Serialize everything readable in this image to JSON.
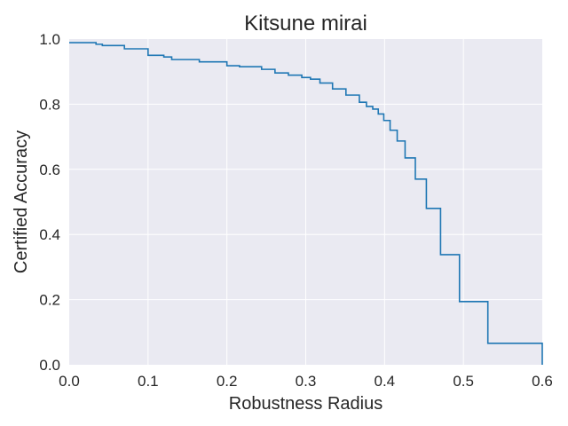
{
  "chart_data": {
    "type": "line",
    "style": "step",
    "title": "Kitsune mirai",
    "xlabel": "Robustness Radius",
    "ylabel": "Certified Accuracy",
    "xlim": [
      0.0,
      0.6
    ],
    "ylim": [
      0.0,
      1.0
    ],
    "xticks": [
      "0.0",
      "0.1",
      "0.2",
      "0.3",
      "0.4",
      "0.5",
      "0.6"
    ],
    "yticks": [
      "0.0",
      "0.2",
      "0.4",
      "0.6",
      "0.8",
      "1.0"
    ],
    "grid": true,
    "legend": null,
    "colors": {
      "line": "#1f77b4",
      "background": "#eaeaf2",
      "grid": "#ffffff"
    },
    "series": [
      {
        "name": "Certified Accuracy",
        "x": [
          0.0,
          0.034,
          0.042,
          0.07,
          0.1,
          0.12,
          0.13,
          0.165,
          0.2,
          0.216,
          0.244,
          0.261,
          0.278,
          0.295,
          0.306,
          0.318,
          0.334,
          0.351,
          0.368,
          0.377,
          0.385,
          0.392,
          0.399,
          0.407,
          0.416,
          0.426,
          0.439,
          0.453,
          0.471,
          0.495,
          0.531,
          0.6
        ],
        "y": [
          0.989,
          0.984,
          0.98,
          0.97,
          0.95,
          0.945,
          0.937,
          0.93,
          0.918,
          0.915,
          0.907,
          0.896,
          0.889,
          0.882,
          0.877,
          0.865,
          0.847,
          0.828,
          0.806,
          0.793,
          0.785,
          0.77,
          0.75,
          0.72,
          0.687,
          0.635,
          0.57,
          0.48,
          0.338,
          0.194,
          0.066,
          0.0
        ]
      }
    ]
  }
}
